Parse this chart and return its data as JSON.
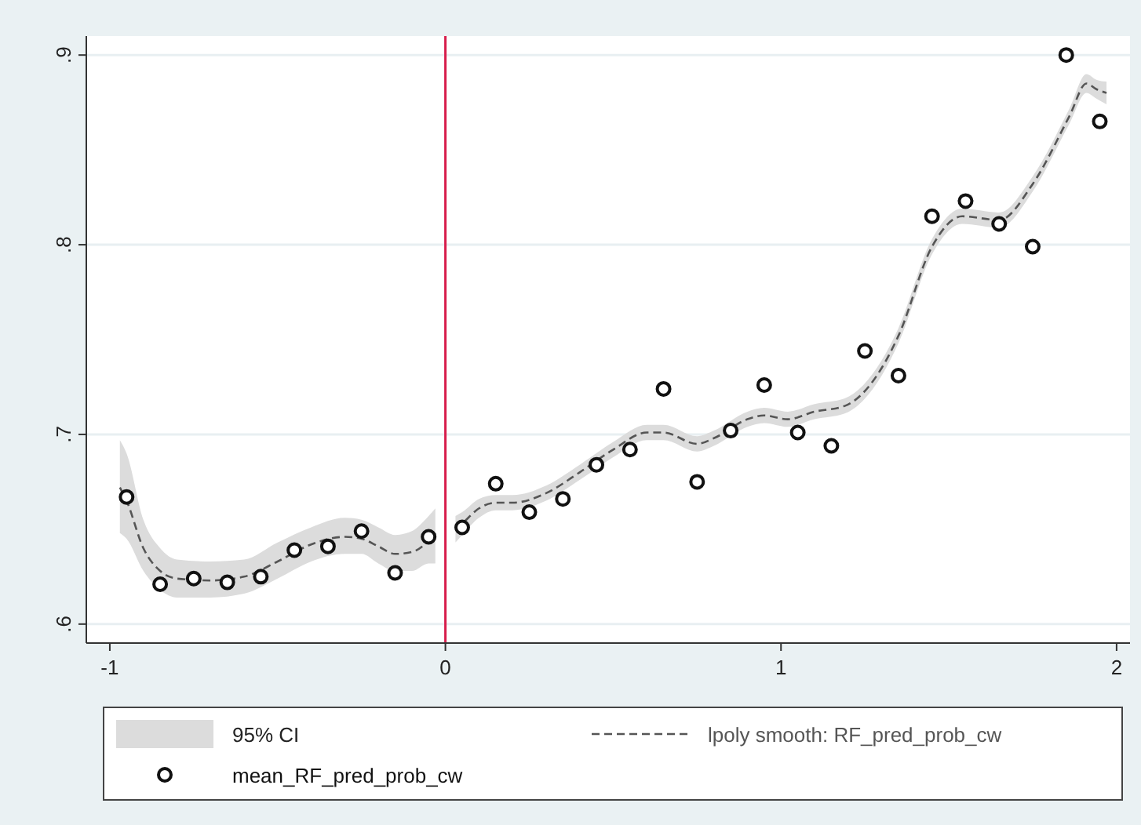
{
  "chart_data": {
    "type": "scatter",
    "xlim": [
      -1.07,
      2.04
    ],
    "ylim": [
      0.59,
      0.91
    ],
    "xticks": [
      -1,
      0,
      1,
      2
    ],
    "yticks": [
      {
        "value": 0.6,
        "label": ".6"
      },
      {
        "value": 0.7,
        "label": ".7"
      },
      {
        "value": 0.8,
        "label": ".8"
      },
      {
        "value": 0.9,
        "label": ".9"
      }
    ],
    "grid": "y",
    "legend": "bottom",
    "annotations": [
      "95% CI"
    ],
    "ref_lines": [
      {
        "axis": "x",
        "value": 0,
        "color": "#d81e4c"
      }
    ],
    "series": [
      {
        "name": "lpoly smooth: RF_pred_prob_cw",
        "type": "line",
        "color": "#555555",
        "line_style": "dashed",
        "marker": "none",
        "x": [
          -0.97,
          -0.95,
          -0.9,
          -0.85,
          -0.8,
          -0.7,
          -0.6,
          -0.5,
          -0.4,
          -0.3,
          -0.25,
          -0.2,
          -0.15,
          -0.1,
          -0.05,
          -0.03,
          0,
          0.03,
          0.05,
          0.1,
          0.15,
          0.2,
          0.3,
          0.4,
          0.5,
          0.6,
          0.65,
          0.75,
          0.8,
          0.9,
          0.95,
          1.02,
          1.1,
          1.19,
          1.3,
          1.35,
          1.45,
          1.54,
          1.65,
          1.75,
          1.86,
          1.91,
          1.94,
          1.97
        ],
        "values": [
          0.672,
          0.665,
          0.64,
          0.628,
          0.624,
          0.623,
          0.625,
          0.633,
          0.642,
          0.646,
          0.645,
          0.641,
          0.637,
          0.638,
          0.644,
          0.648,
          null,
          0.65,
          0.653,
          0.661,
          0.664,
          0.664,
          0.669,
          0.68,
          0.692,
          0.701,
          0.701,
          0.695,
          0.698,
          0.708,
          0.71,
          0.708,
          0.712,
          0.715,
          0.735,
          0.752,
          0.799,
          0.815,
          0.813,
          0.832,
          0.868,
          0.885,
          0.882,
          0.88
        ],
        "lower": [
          0.648,
          0.645,
          0.628,
          0.618,
          0.614,
          0.614,
          0.616,
          0.624,
          0.633,
          0.637,
          0.637,
          0.632,
          0.628,
          0.628,
          0.632,
          0.632,
          null,
          0.643,
          0.647,
          0.656,
          0.66,
          0.66,
          0.665,
          0.676,
          0.688,
          0.697,
          0.697,
          0.691,
          0.694,
          0.704,
          0.706,
          0.704,
          0.708,
          0.711,
          0.731,
          0.748,
          0.795,
          0.811,
          0.809,
          0.828,
          0.864,
          0.88,
          0.877,
          0.874
        ],
        "upper": [
          0.697,
          0.69,
          0.655,
          0.64,
          0.634,
          0.633,
          0.634,
          0.643,
          0.651,
          0.656,
          0.655,
          0.651,
          0.647,
          0.649,
          0.657,
          0.661,
          null,
          0.657,
          0.659,
          0.666,
          0.668,
          0.668,
          0.673,
          0.684,
          0.696,
          0.705,
          0.705,
          0.699,
          0.702,
          0.712,
          0.714,
          0.712,
          0.716,
          0.719,
          0.739,
          0.756,
          0.803,
          0.819,
          0.817,
          0.836,
          0.872,
          0.89,
          0.887,
          0.886
        ]
      },
      {
        "name": "mean_RF_pred_prob_cw",
        "color": "#111111",
        "marker": "circle",
        "x": [
          -0.95,
          -0.85,
          -0.75,
          -0.65,
          -0.55,
          -0.45,
          -0.35,
          -0.25,
          -0.15,
          -0.05,
          0.05,
          0.15,
          0.25,
          0.35,
          0.45,
          0.55,
          0.65,
          0.75,
          0.85,
          0.95,
          1.05,
          1.15,
          1.25,
          1.35,
          1.45,
          1.55,
          1.65,
          1.75,
          1.85,
          1.95
        ],
        "values": [
          0.667,
          0.621,
          0.624,
          0.622,
          0.625,
          0.639,
          0.641,
          0.649,
          0.627,
          0.646,
          0.651,
          0.674,
          0.659,
          0.666,
          0.684,
          0.692,
          0.724,
          0.675,
          0.702,
          0.726,
          0.701,
          0.694,
          0.744,
          0.731,
          0.815,
          0.823,
          0.811,
          0.799,
          0.9,
          0.865
        ]
      }
    ]
  }
}
